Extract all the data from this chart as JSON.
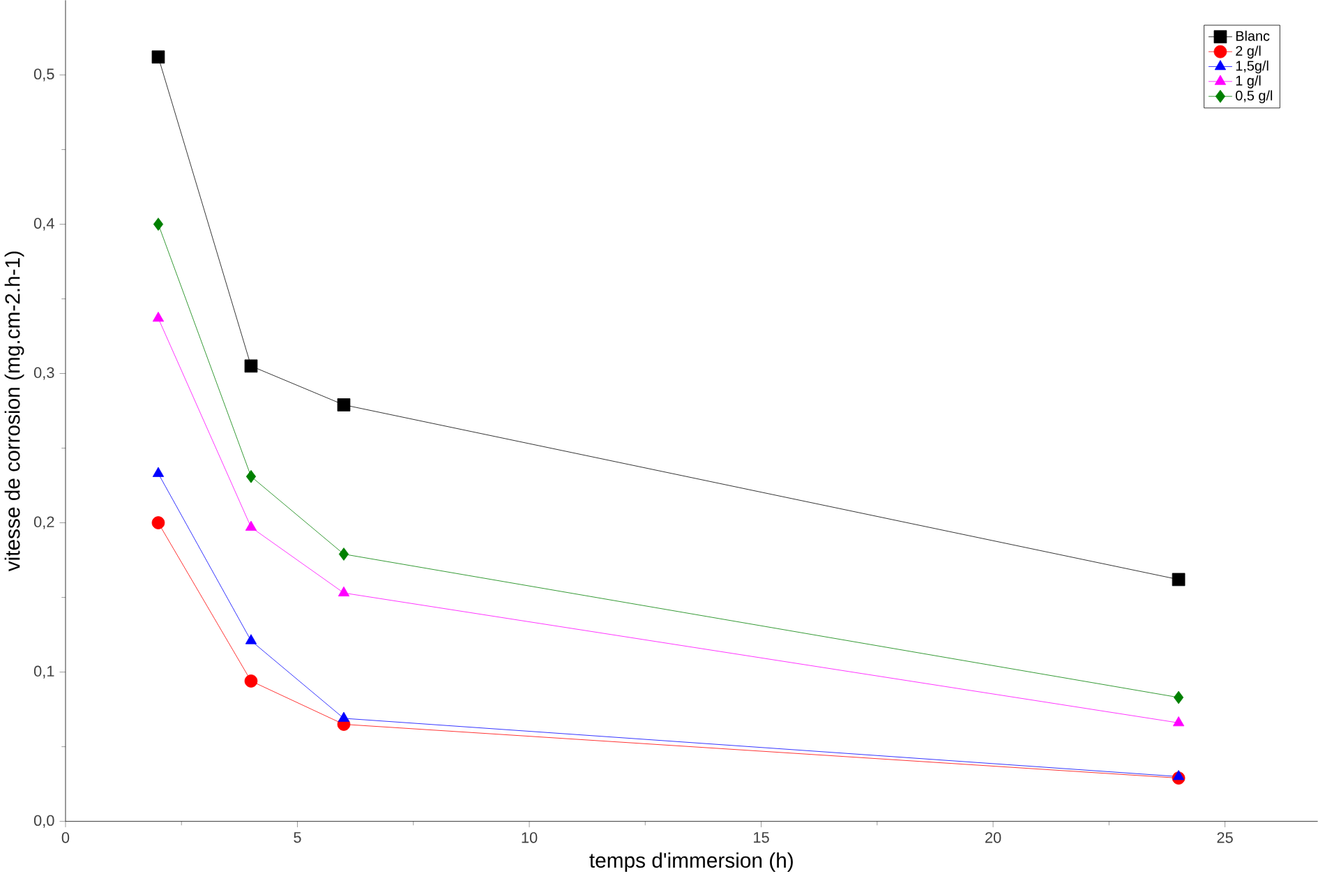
{
  "chart_data": {
    "type": "line",
    "xlabel": "temps d'immersion (h)",
    "ylabel": "vitesse de corrosion (mg.cm-2.h-1)",
    "x": [
      2,
      4,
      6,
      24
    ],
    "series": [
      {
        "name": "Blanc",
        "color": "#000000",
        "marker": "square",
        "values": [
          0.512,
          0.305,
          0.279,
          0.162
        ]
      },
      {
        "name": "2 g/l",
        "color": "#ff0000",
        "marker": "circle",
        "values": [
          0.2,
          0.094,
          0.065,
          0.029
        ]
      },
      {
        "name": "1,5g/l",
        "color": "#0000ff",
        "marker": "triangle",
        "values": [
          0.233,
          0.121,
          0.069,
          0.03
        ]
      },
      {
        "name": "1 g/l",
        "color": "#ff00ff",
        "marker": "triangle down",
        "values": [
          0.337,
          0.197,
          0.153,
          0.066
        ]
      },
      {
        "name": "0,5 g/l",
        "color": "#008000",
        "marker": "diamond",
        "values": [
          0.4,
          0.231,
          0.179,
          0.083
        ]
      }
    ],
    "xlim": [
      0,
      27
    ],
    "ylim": [
      0,
      0.55
    ],
    "xticks": [
      0,
      5,
      10,
      15,
      20,
      25
    ],
    "yticks": [
      {
        "value": 0,
        "label": "0,0"
      },
      {
        "value": 0.1,
        "label": "0,1"
      },
      {
        "value": 0.2,
        "label": "0,2"
      },
      {
        "value": 0.3,
        "label": "0,3"
      },
      {
        "value": 0.4,
        "label": "0,4"
      },
      {
        "value": 0.5,
        "label": "0,5"
      }
    ],
    "grid": false,
    "legend": "top right",
    "line_style": "solid"
  }
}
